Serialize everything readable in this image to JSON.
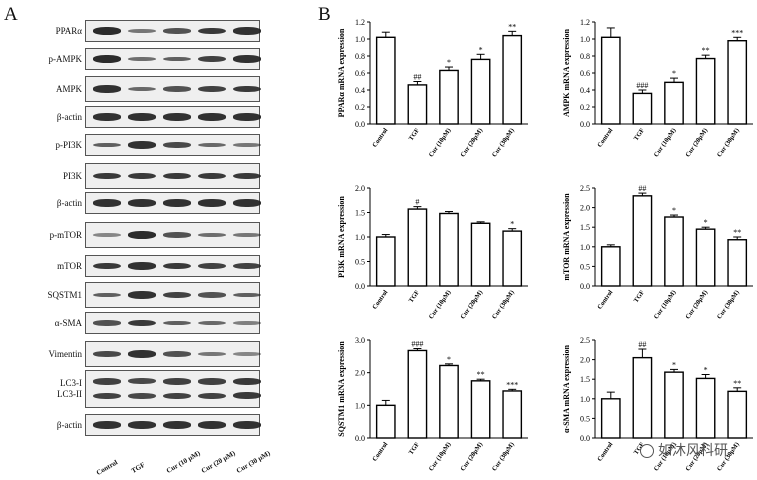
{
  "panel_a": {
    "letter": "A",
    "blots": [
      {
        "label": "PPARα",
        "intensity": [
          0.95,
          0.45,
          0.7,
          0.85,
          0.9
        ]
      },
      {
        "label": "p-AMPK",
        "intensity": [
          0.95,
          0.5,
          0.6,
          0.8,
          0.9
        ]
      },
      {
        "label": "AMPK",
        "intensity": [
          0.9,
          0.55,
          0.7,
          0.8,
          0.85
        ]
      },
      {
        "label": "β-actin",
        "intensity": [
          0.9,
          0.9,
          0.9,
          0.9,
          0.9
        ]
      },
      {
        "label": "p-PI3K",
        "intensity": [
          0.6,
          0.9,
          0.75,
          0.55,
          0.45
        ]
      },
      {
        "label": "PI3K",
        "intensity": [
          0.85,
          0.85,
          0.85,
          0.85,
          0.85
        ]
      },
      {
        "label": "β-actin",
        "intensity": [
          0.9,
          0.9,
          0.9,
          0.9,
          0.9
        ]
      },
      {
        "label": "p-mTOR",
        "intensity": [
          0.35,
          0.95,
          0.7,
          0.5,
          0.45
        ]
      },
      {
        "label": "mTOR",
        "intensity": [
          0.85,
          0.9,
          0.85,
          0.8,
          0.8
        ]
      },
      {
        "label": "SQSTM1",
        "intensity": [
          0.6,
          0.9,
          0.8,
          0.7,
          0.6
        ]
      },
      {
        "label": "α-SMA",
        "intensity": [
          0.7,
          0.85,
          0.6,
          0.55,
          0.4
        ]
      },
      {
        "label": "Vimentin",
        "intensity": [
          0.75,
          0.9,
          0.7,
          0.45,
          0.35
        ]
      },
      {
        "label": "LC3-I\nLC3-II",
        "intensity": [
          0.8,
          0.75,
          0.8,
          0.8,
          0.85
        ]
      },
      {
        "label": "β-actin",
        "intensity": [
          0.9,
          0.9,
          0.9,
          0.9,
          0.9
        ]
      }
    ],
    "columns": [
      "Control",
      "TGF",
      "Cur (10 μM)",
      "Cur (20 μM)",
      "Cur (30 μM)"
    ]
  },
  "panel_b": {
    "letter": "B"
  },
  "chart_data": [
    {
      "type": "bar",
      "categories": [
        "Control",
        "TGF",
        "Cur (10μM)",
        "Cur (20μM)",
        "Cur (30μM)"
      ],
      "values": [
        1.02,
        0.46,
        0.63,
        0.76,
        1.04
      ],
      "errors": [
        0.06,
        0.04,
        0.04,
        0.06,
        0.05
      ],
      "annotations": [
        "",
        "##",
        "*",
        "*",
        "**"
      ],
      "ylabel": "PPARα mRNA expression",
      "ylim": [
        0,
        1.2
      ],
      "yticks": [
        "0.0",
        "0.2",
        "0.4",
        "0.6",
        "0.8",
        "1.0",
        "1.2"
      ]
    },
    {
      "type": "bar",
      "categories": [
        "Control",
        "TGF",
        "Cur (10μM)",
        "Cur (20μM)",
        "Cur (30μM)"
      ],
      "values": [
        1.02,
        0.36,
        0.49,
        0.77,
        0.98
      ],
      "errors": [
        0.11,
        0.04,
        0.05,
        0.04,
        0.04
      ],
      "annotations": [
        "",
        "###",
        "*",
        "**",
        "***"
      ],
      "ylabel": "AMPK mRNA expression",
      "ylim": [
        0,
        1.2
      ],
      "yticks": [
        "0.0",
        "0.2",
        "0.4",
        "0.6",
        "0.8",
        "1.0",
        "1.2"
      ]
    },
    {
      "type": "bar",
      "categories": [
        "Control",
        "TGF",
        "Cur (10μM)",
        "Cur (20μM)",
        "Cur (30μM)"
      ],
      "values": [
        1.0,
        1.57,
        1.48,
        1.28,
        1.12
      ],
      "errors": [
        0.05,
        0.05,
        0.04,
        0.03,
        0.05
      ],
      "annotations": [
        "",
        "#",
        "",
        "",
        "*"
      ],
      "ylabel": "PI3K mRNA expression",
      "ylim": [
        0,
        2.0
      ],
      "yticks": [
        "0.0",
        "0.5",
        "1.0",
        "1.5",
        "2.0"
      ]
    },
    {
      "type": "bar",
      "categories": [
        "Control",
        "TGF",
        "Cur (10μM)",
        "Cur (20μM)",
        "Cur (30μM)"
      ],
      "values": [
        1.0,
        2.3,
        1.76,
        1.45,
        1.18
      ],
      "errors": [
        0.05,
        0.07,
        0.05,
        0.05,
        0.07
      ],
      "annotations": [
        "",
        "##",
        "*",
        "*",
        "**"
      ],
      "ylabel": "mTOR mRNA expression",
      "ylim": [
        0,
        2.5
      ],
      "yticks": [
        "0.0",
        "0.5",
        "1.0",
        "1.5",
        "2.0",
        "2.5"
      ]
    },
    {
      "type": "bar",
      "categories": [
        "Control",
        "TGF",
        "Cur (10μM)",
        "Cur (20μM)",
        "Cur (30μM)"
      ],
      "values": [
        1.0,
        2.68,
        2.22,
        1.75,
        1.44
      ],
      "errors": [
        0.15,
        0.06,
        0.05,
        0.05,
        0.05
      ],
      "annotations": [
        "",
        "###",
        "*",
        "**",
        "***"
      ],
      "ylabel": "SQSTM1 mRNA expression",
      "ylim": [
        0,
        3.0
      ],
      "yticks": [
        "0.0",
        "1.0",
        "2.0",
        "3.0"
      ]
    },
    {
      "type": "bar",
      "categories": [
        "Control",
        "TGF",
        "Cur (10μM)",
        "Cur (20μM)",
        "Cur (30μM)"
      ],
      "values": [
        1.0,
        2.05,
        1.68,
        1.52,
        1.19
      ],
      "errors": [
        0.17,
        0.22,
        0.07,
        0.1,
        0.09
      ],
      "annotations": [
        "",
        "##",
        "*",
        "*",
        "**"
      ],
      "ylabel": "α-SMA mRNA expression",
      "ylim": [
        0,
        2.5
      ],
      "yticks": [
        "0.0",
        "0.5",
        "1.0",
        "1.5",
        "2.0",
        "2.5"
      ]
    }
  ],
  "watermark": {
    "text": "如沐风科研"
  }
}
